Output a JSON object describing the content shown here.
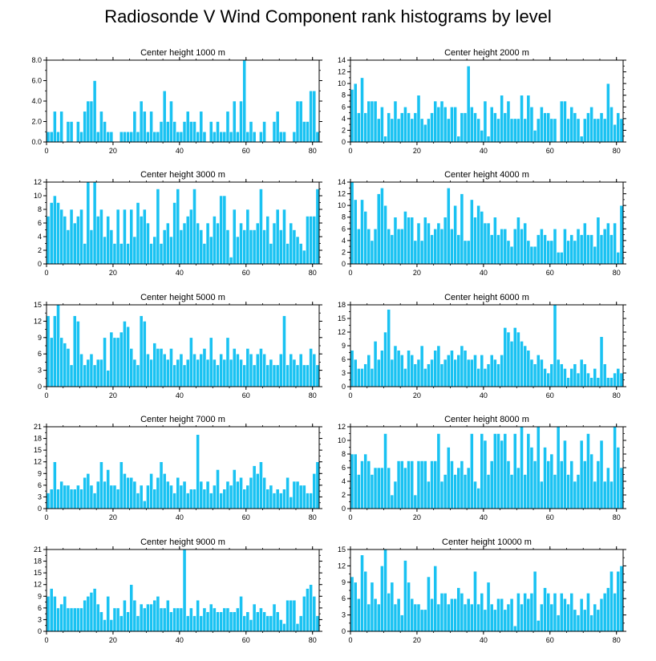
{
  "title": "Radiosonde V Wind Component rank histograms by level",
  "colors": {
    "bar": "#19c2f2",
    "bar_edge": "#ffffff",
    "axis": "#000000"
  },
  "chart_data": [
    {
      "type": "bar",
      "title": "Center height 1000 m",
      "ylim": [
        0,
        8
      ],
      "yticks": [
        0,
        2,
        4,
        6,
        8
      ],
      "ytick_labels": [
        "0.0",
        "2.0",
        "4.0",
        "6.0",
        "8.0"
      ],
      "xlim": [
        0,
        82
      ],
      "xticks": [
        0,
        20,
        40,
        60,
        80
      ],
      "values": [
        1,
        1,
        3,
        1,
        3,
        0,
        2,
        2,
        0,
        2,
        1,
        3,
        4,
        4,
        6,
        1,
        3,
        2,
        1,
        1,
        0,
        0,
        1,
        1,
        1,
        1,
        3,
        1,
        4,
        3,
        1,
        3,
        1,
        1,
        2,
        5,
        2,
        4,
        2,
        1,
        1,
        2,
        3,
        2,
        2,
        1,
        3,
        1,
        0,
        2,
        1,
        2,
        1,
        1,
        3,
        1,
        4,
        1,
        4,
        8,
        1,
        2,
        1,
        0,
        1,
        2,
        0,
        0,
        2,
        3,
        1,
        1,
        0,
        0,
        1,
        4,
        4,
        2,
        2,
        5,
        5,
        1
      ]
    },
    {
      "type": "bar",
      "title": "Center height 2000 m",
      "ylim": [
        0,
        14
      ],
      "yticks": [
        0,
        2,
        4,
        6,
        8,
        10,
        12,
        14
      ],
      "ytick_labels": [
        "0",
        "2",
        "4",
        "6",
        "8",
        "10",
        "12",
        "14"
      ],
      "xlim": [
        0,
        82
      ],
      "xticks": [
        0,
        20,
        40,
        60,
        80
      ],
      "values": [
        9,
        10,
        5,
        11,
        5,
        7,
        7,
        7,
        4,
        6,
        1,
        5,
        4,
        7,
        4,
        5,
        6,
        5,
        4,
        5,
        8,
        4,
        3,
        4,
        5,
        7,
        6,
        7,
        6,
        4,
        6,
        6,
        1,
        5,
        5,
        13,
        6,
        5,
        4,
        2,
        7,
        1,
        6,
        5,
        4,
        8,
        5,
        7,
        4,
        4,
        4,
        8,
        4,
        8,
        6,
        2,
        4,
        6,
        5,
        5,
        4,
        4,
        0,
        7,
        7,
        4,
        6,
        5,
        4,
        1,
        4,
        5,
        6,
        4,
        4,
        5,
        4,
        10,
        6,
        3,
        5,
        4
      ]
    },
    {
      "type": "bar",
      "title": "Center height 3000 m",
      "ylim": [
        0,
        12
      ],
      "yticks": [
        0,
        2,
        4,
        6,
        8,
        10,
        12
      ],
      "ytick_labels": [
        "0",
        "2",
        "4",
        "6",
        "8",
        "10",
        "12"
      ],
      "xlim": [
        0,
        82
      ],
      "xticks": [
        0,
        20,
        40,
        60,
        80
      ],
      "values": [
        7,
        9,
        10,
        9,
        8,
        7,
        5,
        8,
        6,
        7,
        8,
        3,
        12,
        5,
        12,
        7,
        8,
        4,
        7,
        5,
        3,
        8,
        3,
        8,
        3,
        8,
        4,
        9,
        7,
        8,
        6,
        3,
        4,
        11,
        3,
        5,
        6,
        4,
        9,
        11,
        5,
        6,
        7,
        8,
        11,
        6,
        5,
        3,
        6,
        4,
        7,
        6,
        10,
        10,
        5,
        1,
        8,
        4,
        6,
        5,
        8,
        5,
        5,
        6,
        11,
        5,
        7,
        3,
        6,
        8,
        5,
        8,
        3,
        6,
        5,
        4,
        3,
        2,
        7,
        7,
        7,
        11
      ]
    },
    {
      "type": "bar",
      "title": "Center height 4000 m",
      "ylim": [
        0,
        14
      ],
      "yticks": [
        0,
        2,
        4,
        6,
        8,
        10,
        12,
        14
      ],
      "ytick_labels": [
        "0",
        "2",
        "4",
        "6",
        "8",
        "10",
        "12",
        "14"
      ],
      "xlim": [
        0,
        82
      ],
      "xticks": [
        0,
        20,
        40,
        60,
        80
      ],
      "values": [
        14,
        11,
        6,
        11,
        9,
        6,
        4,
        6,
        12,
        13,
        10,
        6,
        5,
        8,
        6,
        6,
        9,
        8,
        8,
        4,
        7,
        4,
        8,
        7,
        5,
        6,
        7,
        6,
        8,
        13,
        6,
        10,
        5,
        12,
        4,
        4,
        11,
        8,
        10,
        9,
        7,
        7,
        5,
        8,
        5,
        6,
        6,
        4,
        3,
        6,
        8,
        6,
        7,
        4,
        3,
        3,
        5,
        6,
        5,
        4,
        4,
        6,
        2,
        2,
        6,
        4,
        5,
        4,
        6,
        5,
        7,
        5,
        5,
        3,
        8,
        5,
        6,
        7,
        5,
        7,
        2,
        10
      ]
    },
    {
      "type": "bar",
      "title": "Center height 5000 m",
      "ylim": [
        0,
        15
      ],
      "yticks": [
        0,
        3,
        6,
        9,
        12,
        15
      ],
      "ytick_labels": [
        "0",
        "3",
        "6",
        "9",
        "12",
        "15"
      ],
      "xlim": [
        0,
        82
      ],
      "xticks": [
        0,
        20,
        40,
        60,
        80
      ],
      "values": [
        13,
        9,
        13,
        15,
        9,
        8,
        7,
        4,
        13,
        12,
        6,
        4,
        5,
        6,
        4,
        5,
        5,
        9,
        3,
        10,
        9,
        9,
        10,
        12,
        11,
        7,
        5,
        4,
        13,
        12,
        6,
        5,
        8,
        7,
        7,
        6,
        5,
        7,
        4,
        5,
        6,
        4,
        5,
        9,
        6,
        5,
        6,
        7,
        5,
        9,
        5,
        4,
        6,
        5,
        9,
        5,
        7,
        6,
        5,
        4,
        7,
        6,
        4,
        6,
        7,
        6,
        4,
        5,
        4,
        4,
        6,
        13,
        4,
        6,
        5,
        4,
        6,
        4,
        4,
        7,
        6,
        4
      ]
    },
    {
      "type": "bar",
      "title": "Center height 6000 m",
      "ylim": [
        0,
        18
      ],
      "yticks": [
        0,
        3,
        6,
        9,
        12,
        15,
        18
      ],
      "ytick_labels": [
        "0",
        "3",
        "6",
        "9",
        "12",
        "15",
        "18"
      ],
      "xlim": [
        0,
        82
      ],
      "xticks": [
        0,
        20,
        40,
        60,
        80
      ],
      "values": [
        8,
        6,
        4,
        4,
        5,
        7,
        4,
        10,
        6,
        8,
        12,
        17,
        6,
        9,
        8,
        7,
        4,
        8,
        7,
        5,
        6,
        9,
        4,
        5,
        6,
        8,
        9,
        5,
        6,
        7,
        8,
        6,
        7,
        9,
        8,
        6,
        6,
        7,
        4,
        7,
        4,
        5,
        7,
        6,
        5,
        7,
        13,
        12,
        10,
        13,
        12,
        10,
        9,
        8,
        6,
        5,
        7,
        6,
        4,
        3,
        5,
        18,
        6,
        5,
        4,
        2,
        4,
        5,
        3,
        6,
        5,
        3,
        2,
        4,
        2,
        11,
        5,
        2,
        2,
        3,
        4,
        3
      ]
    },
    {
      "type": "bar",
      "title": "Center height 7000 m",
      "ylim": [
        0,
        21
      ],
      "yticks": [
        0,
        3,
        6,
        9,
        12,
        15,
        18,
        21
      ],
      "ytick_labels": [
        "0",
        "3",
        "6",
        "9",
        "12",
        "15",
        "18",
        "21"
      ],
      "xlim": [
        0,
        82
      ],
      "xticks": [
        0,
        20,
        40,
        60,
        80
      ],
      "values": [
        4,
        5,
        12,
        5,
        7,
        6,
        6,
        5,
        5,
        6,
        5,
        8,
        9,
        6,
        4,
        7,
        12,
        7,
        10,
        6,
        6,
        5,
        12,
        9,
        8,
        8,
        7,
        4,
        6,
        2,
        6,
        9,
        5,
        8,
        12,
        9,
        7,
        6,
        4,
        8,
        6,
        7,
        4,
        5,
        5,
        19,
        7,
        5,
        7,
        4,
        6,
        10,
        4,
        5,
        7,
        6,
        10,
        7,
        8,
        5,
        6,
        8,
        11,
        9,
        12,
        8,
        5,
        6,
        4,
        5,
        4,
        5,
        8,
        3,
        7,
        7,
        6,
        6,
        4,
        4,
        9,
        12
      ]
    },
    {
      "type": "bar",
      "title": "Center height 8000 m",
      "ylim": [
        0,
        12
      ],
      "yticks": [
        0,
        2,
        4,
        6,
        8,
        10,
        12
      ],
      "ytick_labels": [
        "0",
        "2",
        "4",
        "6",
        "8",
        "10",
        "12"
      ],
      "xlim": [
        0,
        82
      ],
      "xticks": [
        0,
        20,
        40,
        60,
        80
      ],
      "values": [
        8,
        8,
        5,
        7,
        8,
        7,
        5,
        6,
        6,
        6,
        11,
        6,
        2,
        4,
        7,
        7,
        6,
        7,
        7,
        2,
        7,
        7,
        7,
        4,
        7,
        7,
        11,
        4,
        5,
        9,
        7,
        5,
        6,
        7,
        5,
        6,
        11,
        4,
        3,
        11,
        10,
        5,
        7,
        11,
        11,
        10,
        11,
        7,
        5,
        11,
        6,
        12,
        5,
        11,
        9,
        7,
        12,
        4,
        9,
        7,
        8,
        5,
        12,
        7,
        10,
        5,
        7,
        4,
        5,
        10,
        7,
        11,
        8,
        4,
        7,
        10,
        4,
        6,
        4,
        12,
        9,
        6
      ]
    },
    {
      "type": "bar",
      "title": "Center height 9000 m",
      "ylim": [
        0,
        21
      ],
      "yticks": [
        0,
        3,
        6,
        9,
        12,
        15,
        18,
        21
      ],
      "ytick_labels": [
        "0",
        "3",
        "6",
        "9",
        "12",
        "15",
        "18",
        "21"
      ],
      "xlim": [
        0,
        82
      ],
      "xticks": [
        0,
        20,
        40,
        60,
        80
      ],
      "values": [
        9,
        11,
        9,
        6,
        7,
        9,
        6,
        6,
        6,
        6,
        6,
        8,
        9,
        10,
        11,
        7,
        5,
        3,
        9,
        3,
        6,
        6,
        4,
        8,
        5,
        12,
        8,
        4,
        7,
        6,
        7,
        7,
        8,
        9,
        6,
        6,
        8,
        5,
        6,
        6,
        6,
        21,
        4,
        6,
        4,
        8,
        4,
        6,
        5,
        7,
        6,
        5,
        5,
        6,
        6,
        5,
        5,
        6,
        9,
        4,
        5,
        3,
        7,
        5,
        6,
        5,
        4,
        4,
        7,
        5,
        3,
        2,
        8,
        8,
        8,
        2,
        4,
        9,
        11,
        12,
        9,
        4
      ]
    },
    {
      "type": "bar",
      "title": "Center height 10000 m",
      "ylim": [
        0,
        15
      ],
      "yticks": [
        0,
        3,
        6,
        9,
        12,
        15
      ],
      "ytick_labels": [
        "0",
        "3",
        "6",
        "9",
        "12",
        "15"
      ],
      "xlim": [
        0,
        82
      ],
      "xticks": [
        0,
        20,
        40,
        60,
        80
      ],
      "values": [
        10,
        9,
        6,
        14,
        11,
        5,
        9,
        6,
        5,
        12,
        15,
        7,
        9,
        5,
        6,
        3,
        13,
        9,
        6,
        5,
        5,
        4,
        4,
        10,
        6,
        12,
        5,
        7,
        7,
        5,
        6,
        6,
        8,
        7,
        5,
        6,
        5,
        11,
        5,
        7,
        4,
        9,
        5,
        4,
        6,
        6,
        4,
        5,
        6,
        1,
        7,
        5,
        7,
        6,
        7,
        11,
        2,
        5,
        8,
        7,
        5,
        7,
        3,
        7,
        6,
        5,
        7,
        4,
        3,
        6,
        4,
        7,
        3,
        5,
        4,
        6,
        7,
        8,
        11,
        7,
        11,
        12
      ]
    }
  ]
}
